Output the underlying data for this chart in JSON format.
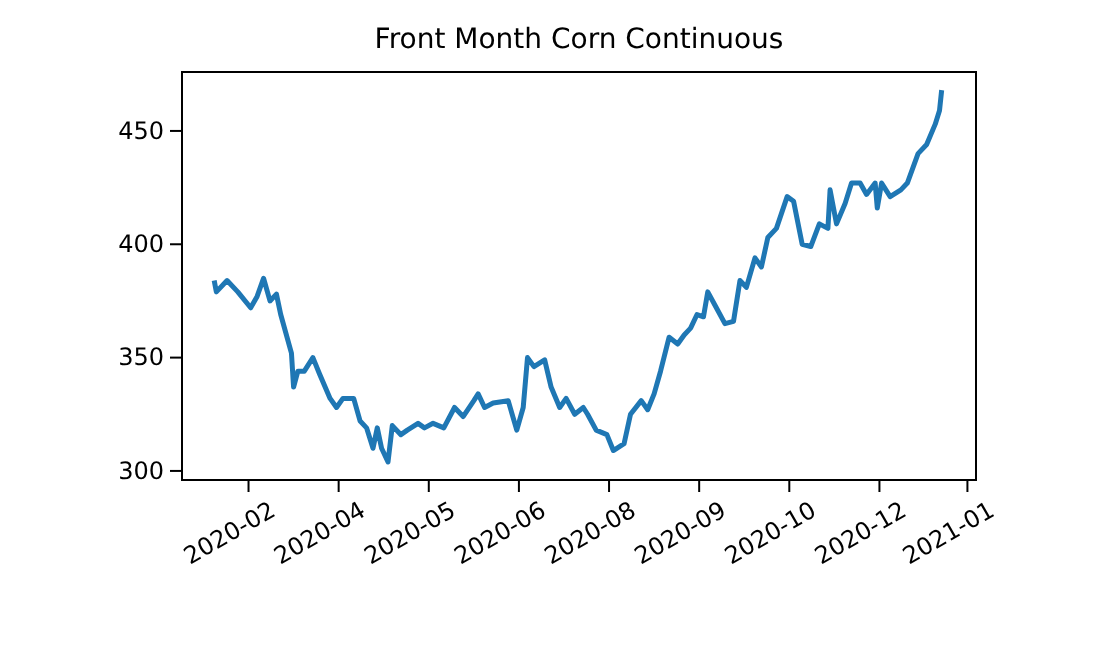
{
  "chart_data": {
    "type": "line",
    "title": "Front Month Corn Continuous",
    "x": [
      "2020-01-16",
      "2020-01-17",
      "2020-01-22",
      "2020-01-27",
      "2020-02-02",
      "2020-02-05",
      "2020-02-08",
      "2020-02-11",
      "2020-02-14",
      "2020-02-16",
      "2020-02-21",
      "2020-02-22",
      "2020-02-24",
      "2020-02-27",
      "2020-03-02",
      "2020-03-05",
      "2020-03-10",
      "2020-03-13",
      "2020-03-16",
      "2020-03-21",
      "2020-03-24",
      "2020-03-27",
      "2020-03-30",
      "2020-04-01",
      "2020-04-03",
      "2020-04-06",
      "2020-04-08",
      "2020-04-12",
      "2020-04-15",
      "2020-04-20",
      "2020-04-23",
      "2020-04-27",
      "2020-05-02",
      "2020-05-07",
      "2020-05-11",
      "2020-05-16",
      "2020-05-18",
      "2020-05-21",
      "2020-05-25",
      "2020-06-01",
      "2020-06-05",
      "2020-06-08",
      "2020-06-10",
      "2020-06-13",
      "2020-06-18",
      "2020-06-21",
      "2020-06-25",
      "2020-06-28",
      "2020-07-02",
      "2020-07-06",
      "2020-07-08",
      "2020-07-12",
      "2020-07-17",
      "2020-07-20",
      "2020-07-25",
      "2020-07-28",
      "2020-08-02",
      "2020-08-05",
      "2020-08-08",
      "2020-08-11",
      "2020-08-15",
      "2020-08-19",
      "2020-08-22",
      "2020-08-25",
      "2020-08-28",
      "2020-08-31",
      "2020-09-02",
      "2020-09-06",
      "2020-09-10",
      "2020-09-14",
      "2020-09-17",
      "2020-09-20",
      "2020-09-24",
      "2020-09-27",
      "2020-09-30",
      "2020-10-04",
      "2020-10-09",
      "2020-10-12",
      "2020-10-16",
      "2020-10-20",
      "2020-10-24",
      "2020-10-28",
      "2020-10-29",
      "2020-11-01",
      "2020-11-05",
      "2020-11-08",
      "2020-11-12",
      "2020-11-15",
      "2020-11-19",
      "2020-11-20",
      "2020-11-22",
      "2020-11-26",
      "2020-12-01",
      "2020-12-04",
      "2020-12-09",
      "2020-12-13",
      "2020-12-17",
      "2020-12-19",
      "2020-12-20"
    ],
    "series": [
      {
        "color": "#1f77b4",
        "values": [
          384,
          379,
          384,
          379,
          372,
          377,
          385,
          375,
          378,
          369,
          352,
          337,
          344,
          344,
          350,
          343,
          332,
          328,
          332,
          332,
          322,
          319,
          310,
          319,
          310,
          304,
          320,
          316,
          318,
          321,
          319,
          321,
          319,
          328,
          324,
          331,
          334,
          328,
          330,
          331,
          318,
          328,
          350,
          346,
          349,
          337,
          328,
          332,
          325,
          328,
          325,
          318,
          316,
          309,
          312,
          325,
          331,
          327,
          334,
          344,
          359,
          356,
          360,
          363,
          369,
          368,
          379,
          372,
          365,
          366,
          384,
          381,
          394,
          390,
          403,
          407,
          421,
          419,
          400,
          399,
          409,
          407,
          424,
          409,
          418,
          427,
          427,
          422,
          427,
          416,
          427,
          421,
          424,
          427,
          440,
          444,
          453,
          459,
          468
        ]
      }
    ],
    "xlim": [
      "2020-01-01",
      "2021-01-05"
    ],
    "xticks": [
      {
        "value": "2020-02-01",
        "label": "2020-02"
      },
      {
        "value": "2020-03-14",
        "label": "2020-04"
      },
      {
        "value": "2020-04-25",
        "label": "2020-05"
      },
      {
        "value": "2020-06-06",
        "label": "2020-06"
      },
      {
        "value": "2020-07-18",
        "label": "2020-08"
      },
      {
        "value": "2020-08-29",
        "label": "2020-09"
      },
      {
        "value": "2020-10-10",
        "label": "2020-10"
      },
      {
        "value": "2020-11-21",
        "label": "2020-12"
      },
      {
        "value": "2021-01-01",
        "label": "2021-01"
      }
    ],
    "ylim": [
      296,
      476
    ],
    "yticks": [
      300,
      350,
      400,
      450
    ],
    "grid": false,
    "marker": "none",
    "line_style": "solid"
  }
}
